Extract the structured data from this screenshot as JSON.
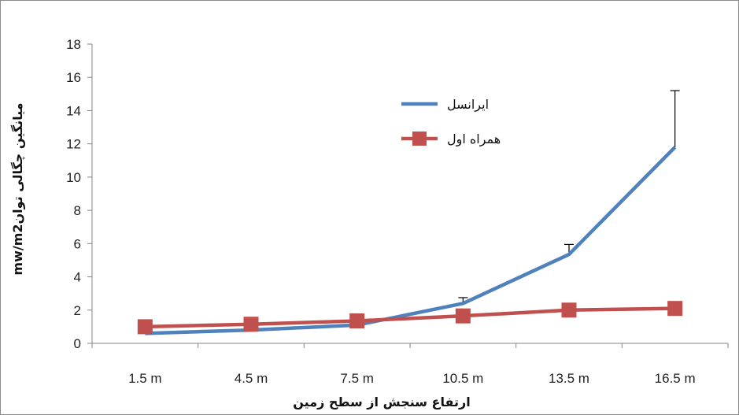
{
  "chart_data": {
    "type": "line",
    "categories": [
      "1.5 m",
      "4.5 m",
      "7.5 m",
      "10.5 m",
      "13.5 m",
      "16.5 m"
    ],
    "series": [
      {
        "name": "ایرانسل",
        "color": "#4f81bd",
        "marker": "none",
        "values": [
          0.6,
          0.8,
          1.1,
          2.4,
          5.35,
          11.8
        ],
        "error_plus": [
          0.0,
          0.0,
          0.0,
          0.35,
          0.6,
          3.4
        ]
      },
      {
        "name": "همراه اول",
        "color": "#c0504d",
        "marker": "square",
        "values": [
          1.0,
          1.15,
          1.35,
          1.65,
          2.0,
          2.1
        ]
      }
    ],
    "ylim": [
      0,
      18
    ],
    "yticks": [
      0,
      2,
      4,
      6,
      8,
      10,
      12,
      14,
      16,
      18
    ],
    "xlabel": "ارتفاع سنجش از سطح زمین",
    "ylabel": "میانگین چگالی توانmw/m2",
    "legend_position": "upper-right-inside",
    "grid": false
  }
}
